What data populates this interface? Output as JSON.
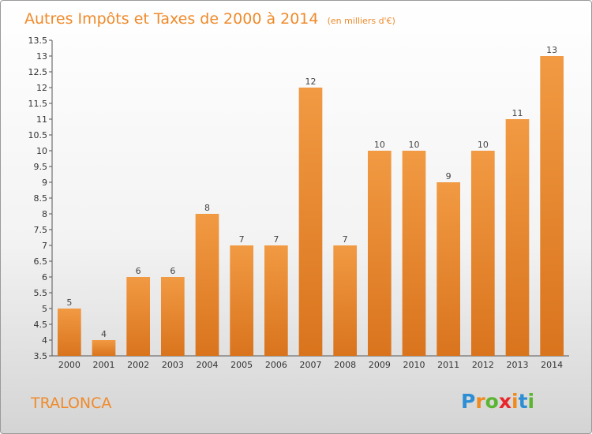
{
  "chart_data": {
    "type": "bar",
    "title": "Autres Impôts et Taxes de 2000 à 2014",
    "subtitle": "(en milliers d'€)",
    "xlabel": "",
    "ylabel": "",
    "categories": [
      "2000",
      "2001",
      "2002",
      "2003",
      "2004",
      "2005",
      "2006",
      "2007",
      "2008",
      "2009",
      "2010",
      "2011",
      "2012",
      "2013",
      "2014"
    ],
    "values": [
      5,
      4,
      6,
      6,
      8,
      7,
      7,
      12,
      7,
      10,
      10,
      9,
      10,
      11,
      13
    ],
    "ylim": [
      3.5,
      13.5
    ],
    "yticks": [
      "3.5",
      "4",
      "4.5",
      "5",
      "5.5",
      "6",
      "6.5",
      "7",
      "7.5",
      "8",
      "8.5",
      "9",
      "9.5",
      "10",
      "10.5",
      "11",
      "11.5",
      "12",
      "12.5",
      "13",
      "13.5"
    ],
    "bar_color": "#f19a43",
    "bar_color_dark": "#d9741d",
    "grid": false,
    "legend": "none"
  },
  "commune": "TRALONCA",
  "logo": {
    "letters": [
      "P",
      "r",
      "o",
      "x",
      "i",
      "t",
      "i"
    ],
    "colors": [
      "#2d8ed4",
      "#f08a1e",
      "#5bb531",
      "#e8262b",
      "#f08a1e",
      "#2d8ed4",
      "#5bb531"
    ]
  }
}
